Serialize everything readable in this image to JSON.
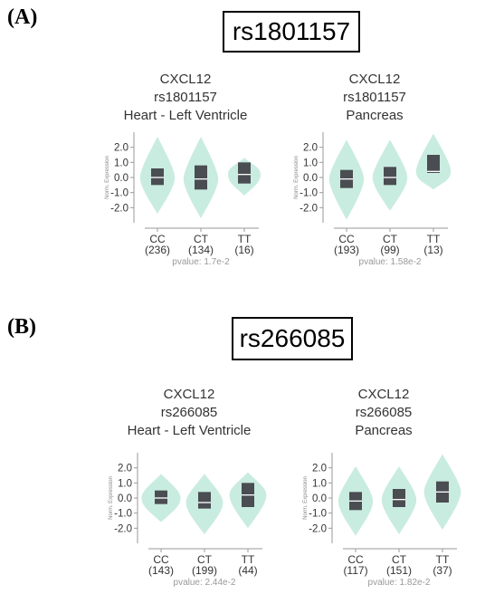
{
  "panels": [
    {
      "letter": "(A)",
      "snp": "rs1801157"
    },
    {
      "letter": "(B)",
      "snp": "rs266085"
    }
  ],
  "y_axis_label": "Norm. Expression",
  "colors": {
    "violin": "#c9ece0",
    "box": "#4a4d52",
    "median": "#ffffff",
    "axis": "#9a9a9a",
    "text": "#333333"
  },
  "chart_data": [
    {
      "type": "violin",
      "gene": "CXCL12",
      "snp": "rs1801157",
      "tissue": "Heart - Left Ventricle",
      "pvalue": "pvalue: 1.7e-2",
      "ylim": [
        -3.0,
        3.0
      ],
      "yticks": [
        "2.0",
        "1.0",
        "0.0",
        "-1.0",
        "-2.0"
      ],
      "categories": [
        "CC",
        "CT",
        "TT"
      ],
      "counts": [
        "(236)",
        "(134)",
        "(16)"
      ],
      "violin_range": [
        [
          -2.4,
          2.7
        ],
        [
          -2.7,
          2.7
        ],
        [
          -1.2,
          1.3
        ]
      ],
      "violin_width": [
        0.8,
        0.8,
        0.75
      ],
      "q1": [
        -0.5,
        -0.8,
        -0.4
      ],
      "median": [
        0.0,
        -0.1,
        0.2
      ],
      "q3": [
        0.6,
        0.8,
        1.0
      ]
    },
    {
      "type": "violin",
      "gene": "CXCL12",
      "snp": "rs1801157",
      "tissue": "Pancreas",
      "pvalue": "pvalue: 1.58e-2",
      "ylim": [
        -3.0,
        3.0
      ],
      "yticks": [
        "2.0",
        "1.0",
        "0.0",
        "-1.0",
        "-2.0"
      ],
      "categories": [
        "CC",
        "CT",
        "TT"
      ],
      "counts": [
        "(193)",
        "(99)",
        "(13)"
      ],
      "violin_range": [
        [
          -2.8,
          2.5
        ],
        [
          -2.2,
          2.5
        ],
        [
          -0.8,
          2.9
        ]
      ],
      "violin_width": [
        0.8,
        0.8,
        0.8
      ],
      "q1": [
        -0.7,
        -0.5,
        0.3
      ],
      "median": [
        -0.1,
        0.0,
        0.4
      ],
      "q3": [
        0.5,
        0.7,
        1.5
      ]
    },
    {
      "type": "violin",
      "gene": "CXCL12",
      "snp": "rs266085",
      "tissue": "Heart - Left Ventricle",
      "pvalue": "pvalue: 2.44e-2",
      "ylim": [
        -3.0,
        3.0
      ],
      "yticks": [
        "2.0",
        "1.0",
        "0.0",
        "-1.0",
        "-2.0"
      ],
      "categories": [
        "CC",
        "CT",
        "TT"
      ],
      "counts": [
        "(143)",
        "(199)",
        "(44)"
      ],
      "violin_range": [
        [
          -1.6,
          1.6
        ],
        [
          -2.4,
          1.6
        ],
        [
          -2.0,
          1.7
        ]
      ],
      "violin_width": [
        0.9,
        0.85,
        0.85
      ],
      "q1": [
        -0.4,
        -0.7,
        -0.6
      ],
      "median": [
        0.0,
        -0.3,
        0.2
      ],
      "q3": [
        0.5,
        0.4,
        1.0
      ]
    },
    {
      "type": "violin",
      "gene": "CXCL12",
      "snp": "rs266085",
      "tissue": "Pancreas",
      "pvalue": "pvalue: 1.82e-2",
      "ylim": [
        -3.0,
        3.0
      ],
      "yticks": [
        "2.0",
        "1.0",
        "0.0",
        "-1.0",
        "-2.0"
      ],
      "categories": [
        "CC",
        "CT",
        "TT"
      ],
      "counts": [
        "(117)",
        "(151)",
        "(37)"
      ],
      "violin_range": [
        [
          -2.5,
          2.1
        ],
        [
          -2.4,
          2.1
        ],
        [
          -2.1,
          2.9
        ]
      ],
      "violin_width": [
        0.8,
        0.8,
        0.85
      ],
      "q1": [
        -0.8,
        -0.6,
        -0.3
      ],
      "median": [
        -0.2,
        -0.1,
        0.4
      ],
      "q3": [
        0.4,
        0.6,
        1.1
      ]
    }
  ]
}
